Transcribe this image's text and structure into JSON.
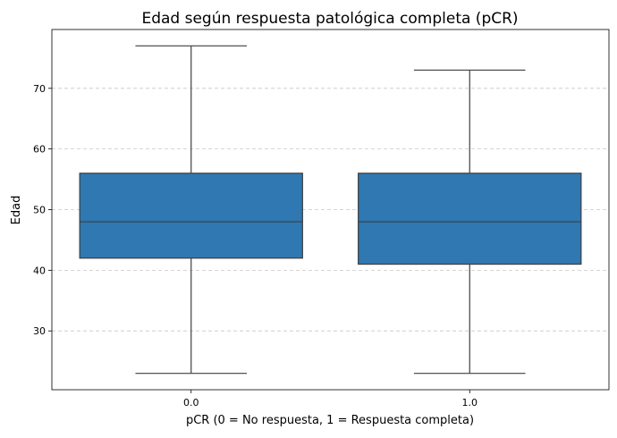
{
  "chart_data": {
    "type": "box",
    "title": "Edad según respuesta patológica completa (pCR)",
    "xlabel": "pCR (0 = No respuesta, 1 = Respuesta completa)",
    "ylabel": "Edad",
    "categories": [
      "0.0",
      "1.0"
    ],
    "boxes": [
      {
        "category": "0.0",
        "whisker_low": 23,
        "q1": 42,
        "median": 48,
        "q3": 56,
        "whisker_high": 77
      },
      {
        "category": "1.0",
        "whisker_low": 23,
        "q1": 41,
        "median": 48,
        "q3": 56,
        "whisker_high": 73
      }
    ],
    "ylim": [
      20.3,
      79.7
    ],
    "yticks": [
      30,
      40,
      50,
      60,
      70
    ],
    "grid": "y-dashed",
    "colors": {
      "box_fill": "#2f78b1",
      "lines": "#3f3f3f",
      "grid": "#c8c8c8"
    }
  }
}
